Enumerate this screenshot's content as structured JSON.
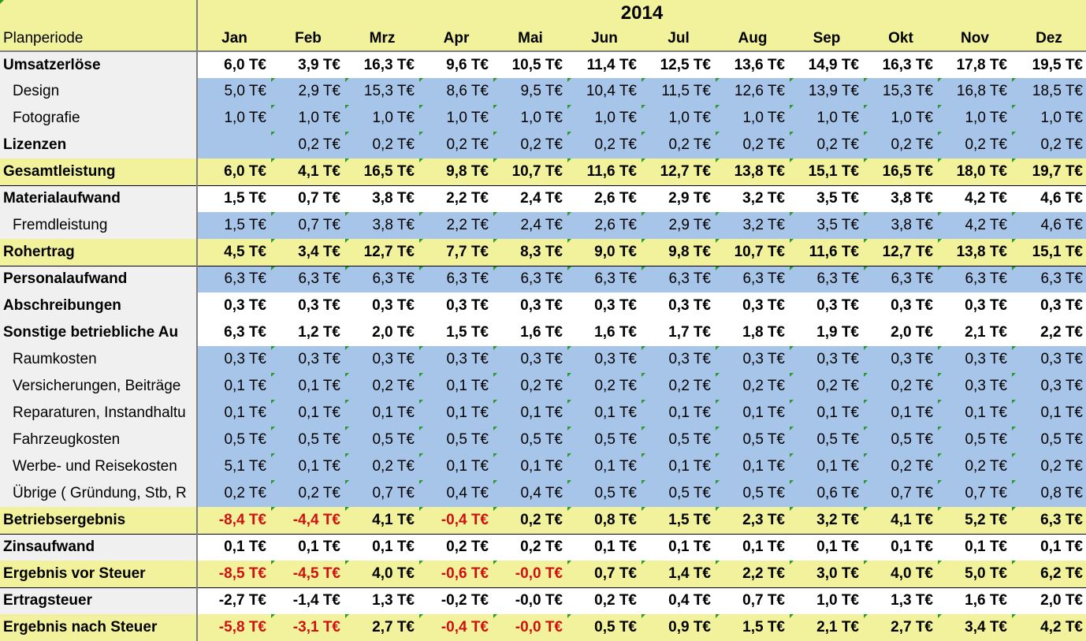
{
  "header": {
    "year": "2014",
    "period_label": "Planperiode",
    "months": [
      "Jan",
      "Feb",
      "Mrz",
      "Apr",
      "Mai",
      "Jun",
      "Jul",
      "Aug",
      "Sep",
      "Okt",
      "Nov",
      "Dez"
    ]
  },
  "colors": {
    "yellow_row": "#f2f29c",
    "blue_row": "#a7c5e8",
    "negative_text": "#d01010"
  },
  "rows": [
    {
      "label": "Umsatzerlöse",
      "style": "bold",
      "bg": "white",
      "values": [
        "6,0 T€",
        "3,9 T€",
        "16,3 T€",
        "9,6 T€",
        "10,5 T€",
        "11,4 T€",
        "12,5 T€",
        "13,6 T€",
        "14,9 T€",
        "16,3 T€",
        "17,8 T€",
        "19,5 T€"
      ]
    },
    {
      "label": "Design",
      "style": "sub",
      "bg": "blue",
      "values": [
        "5,0 T€",
        "2,9 T€",
        "15,3 T€",
        "8,6 T€",
        "9,5 T€",
        "10,4 T€",
        "11,5 T€",
        "12,6 T€",
        "13,9 T€",
        "15,3 T€",
        "16,8 T€",
        "18,5 T€"
      ]
    },
    {
      "label": "Fotografie",
      "style": "sub",
      "bg": "blue",
      "values": [
        "1,0 T€",
        "1,0 T€",
        "1,0 T€",
        "1,0 T€",
        "1,0 T€",
        "1,0 T€",
        "1,0 T€",
        "1,0 T€",
        "1,0 T€",
        "1,0 T€",
        "1,0 T€",
        "1,0 T€"
      ]
    },
    {
      "label": "Lizenzen",
      "style": "bold-label",
      "bg": "blue",
      "values": [
        "",
        "0,2 T€",
        "0,2 T€",
        "0,2 T€",
        "0,2 T€",
        "0,2 T€",
        "0,2 T€",
        "0,2 T€",
        "0,2 T€",
        "0,2 T€",
        "0,2 T€",
        "0,2 T€"
      ]
    },
    {
      "label": "Gesamtleistung",
      "style": "bold",
      "bg": "yellow",
      "values": [
        "6,0 T€",
        "4,1 T€",
        "16,5 T€",
        "9,8 T€",
        "10,7 T€",
        "11,6 T€",
        "12,7 T€",
        "13,8 T€",
        "15,1 T€",
        "16,5 T€",
        "18,0 T€",
        "19,7 T€"
      ]
    },
    {
      "label": "Materialaufwand",
      "style": "bold",
      "bg": "white",
      "values": [
        "1,5 T€",
        "0,7 T€",
        "3,8 T€",
        "2,2 T€",
        "2,4 T€",
        "2,6 T€",
        "2,9 T€",
        "3,2 T€",
        "3,5 T€",
        "3,8 T€",
        "4,2 T€",
        "4,6 T€"
      ]
    },
    {
      "label": "Fremdleistung",
      "style": "sub",
      "bg": "blue",
      "values": [
        "1,5 T€",
        "0,7 T€",
        "3,8 T€",
        "2,2 T€",
        "2,4 T€",
        "2,6 T€",
        "2,9 T€",
        "3,2 T€",
        "3,5 T€",
        "3,8 T€",
        "4,2 T€",
        "4,6 T€"
      ]
    },
    {
      "label": "Rohertrag",
      "style": "bold",
      "bg": "yellow",
      "values": [
        "4,5 T€",
        "3,4 T€",
        "12,7 T€",
        "7,7 T€",
        "8,3 T€",
        "9,0 T€",
        "9,8 T€",
        "10,7 T€",
        "11,6 T€",
        "12,7 T€",
        "13,8 T€",
        "15,1 T€"
      ]
    },
    {
      "label": "Personalaufwand",
      "style": "bold-label",
      "bg": "blue",
      "values": [
        "6,3 T€",
        "6,3 T€",
        "6,3 T€",
        "6,3 T€",
        "6,3 T€",
        "6,3 T€",
        "6,3 T€",
        "6,3 T€",
        "6,3 T€",
        "6,3 T€",
        "6,3 T€",
        "6,3 T€"
      ]
    },
    {
      "label": "Abschreibungen",
      "style": "bold",
      "bg": "white",
      "values": [
        "0,3 T€",
        "0,3 T€",
        "0,3 T€",
        "0,3 T€",
        "0,3 T€",
        "0,3 T€",
        "0,3 T€",
        "0,3 T€",
        "0,3 T€",
        "0,3 T€",
        "0,3 T€",
        "0,3 T€"
      ]
    },
    {
      "label": "Sonstige betriebliche Au",
      "style": "bold",
      "bg": "white",
      "values": [
        "6,3 T€",
        "1,2 T€",
        "2,0 T€",
        "1,5 T€",
        "1,6 T€",
        "1,6 T€",
        "1,7 T€",
        "1,8 T€",
        "1,9 T€",
        "2,0 T€",
        "2,1 T€",
        "2,2 T€"
      ]
    },
    {
      "label": "Raumkosten",
      "style": "sub",
      "bg": "blue",
      "values": [
        "0,3 T€",
        "0,3 T€",
        "0,3 T€",
        "0,3 T€",
        "0,3 T€",
        "0,3 T€",
        "0,3 T€",
        "0,3 T€",
        "0,3 T€",
        "0,3 T€",
        "0,3 T€",
        "0,3 T€"
      ]
    },
    {
      "label": "Versicherungen, Beiträge",
      "style": "sub",
      "bg": "blue",
      "values": [
        "0,1 T€",
        "0,1 T€",
        "0,2 T€",
        "0,1 T€",
        "0,2 T€",
        "0,2 T€",
        "0,2 T€",
        "0,2 T€",
        "0,2 T€",
        "0,2 T€",
        "0,3 T€",
        "0,3 T€"
      ]
    },
    {
      "label": "Reparaturen, Instandhaltu",
      "style": "sub",
      "bg": "blue",
      "values": [
        "0,1 T€",
        "0,1 T€",
        "0,1 T€",
        "0,1 T€",
        "0,1 T€",
        "0,1 T€",
        "0,1 T€",
        "0,1 T€",
        "0,1 T€",
        "0,1 T€",
        "0,1 T€",
        "0,1 T€"
      ]
    },
    {
      "label": "Fahrzeugkosten",
      "style": "sub",
      "bg": "blue",
      "values": [
        "0,5 T€",
        "0,5 T€",
        "0,5 T€",
        "0,5 T€",
        "0,5 T€",
        "0,5 T€",
        "0,5 T€",
        "0,5 T€",
        "0,5 T€",
        "0,5 T€",
        "0,5 T€",
        "0,5 T€"
      ]
    },
    {
      "label": "Werbe- und Reisekosten",
      "style": "sub",
      "bg": "blue",
      "values": [
        "5,1 T€",
        "0,1 T€",
        "0,2 T€",
        "0,1 T€",
        "0,1 T€",
        "0,1 T€",
        "0,1 T€",
        "0,1 T€",
        "0,1 T€",
        "0,2 T€",
        "0,2 T€",
        "0,2 T€"
      ]
    },
    {
      "label": "Übrige ( Gründung, Stb, R",
      "style": "sub",
      "bg": "blue",
      "values": [
        "0,2 T€",
        "0,2 T€",
        "0,7 T€",
        "0,4 T€",
        "0,4 T€",
        "0,5 T€",
        "0,5 T€",
        "0,5 T€",
        "0,6 T€",
        "0,7 T€",
        "0,7 T€",
        "0,8 T€"
      ]
    },
    {
      "label": "Betriebsergebnis",
      "style": "bold",
      "bg": "yellow",
      "values": [
        "-8,4 T€",
        "-4,4 T€",
        "4,1 T€",
        "-0,4 T€",
        "0,2 T€",
        "0,8 T€",
        "1,5 T€",
        "2,3 T€",
        "3,2 T€",
        "4,1 T€",
        "5,2 T€",
        "6,3 T€"
      ]
    },
    {
      "label": "Zinsaufwand",
      "style": "bold",
      "bg": "white",
      "values": [
        "0,1 T€",
        "0,1 T€",
        "0,1 T€",
        "0,2 T€",
        "0,2 T€",
        "0,1 T€",
        "0,1 T€",
        "0,1 T€",
        "0,1 T€",
        "0,1 T€",
        "0,1 T€",
        "0,1 T€"
      ]
    },
    {
      "label": "Ergebnis vor Steuer",
      "style": "bold",
      "bg": "yellow",
      "values": [
        "-8,5 T€",
        "-4,5 T€",
        "4,0 T€",
        "-0,6 T€",
        "-0,0 T€",
        "0,7 T€",
        "1,4 T€",
        "2,2 T€",
        "3,0 T€",
        "4,0 T€",
        "5,0 T€",
        "6,2 T€"
      ]
    },
    {
      "label": "Ertragsteuer",
      "style": "bold",
      "bg": "white",
      "values": [
        "-2,7 T€",
        "-1,4 T€",
        "1,3 T€",
        "-0,2 T€",
        "-0,0 T€",
        "0,2 T€",
        "0,4 T€",
        "0,7 T€",
        "1,0 T€",
        "1,3 T€",
        "1,6 T€",
        "2,0 T€"
      ]
    },
    {
      "label": "Ergebnis nach Steuer",
      "style": "bold",
      "bg": "yellow",
      "values": [
        "-5,8 T€",
        "-3,1 T€",
        "2,7 T€",
        "-0,4 T€",
        "-0,0 T€",
        "0,5 T€",
        "0,9 T€",
        "1,5 T€",
        "2,1 T€",
        "2,7 T€",
        "3,4 T€",
        "4,2 T€"
      ]
    }
  ]
}
